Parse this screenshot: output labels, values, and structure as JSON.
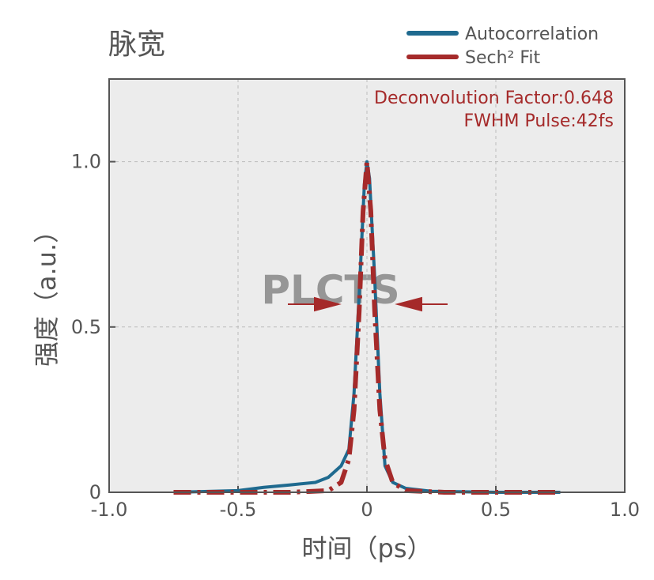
{
  "chart_data": {
    "type": "line",
    "title": "脉宽",
    "x_label": "时间（ps）",
    "y_label": "强度（a.u.）",
    "annotations": [
      "Deconvolution Factor:0.648",
      "FWHM Pulse:42fs"
    ],
    "watermark": "PLCTS",
    "xlim": [
      -1,
      1
    ],
    "ylim": [
      0,
      1.25
    ],
    "xticks": [
      {
        "value": -1,
        "label": "-1.0"
      },
      -0.5,
      0,
      0.5,
      {
        "value": 1,
        "label": "1.0"
      }
    ],
    "yticks": [
      0,
      0.5,
      {
        "value": 1,
        "label": "1.0"
      }
    ],
    "grid": true,
    "legend": "top-right",
    "series": [
      {
        "name": "Autocorrelation",
        "color": "#1f6a8f",
        "dash": false,
        "x": [
          -0.75,
          -0.5,
          -0.4,
          -0.3,
          -0.2,
          -0.15,
          -0.1,
          -0.07,
          -0.05,
          -0.03,
          -0.01,
          0,
          0.01,
          0.03,
          0.05,
          0.07,
          0.1,
          0.15,
          0.25,
          0.5,
          0.75
        ],
        "values": [
          0,
          0.005,
          0.015,
          0.022,
          0.03,
          0.045,
          0.08,
          0.13,
          0.3,
          0.6,
          0.93,
          1.0,
          0.95,
          0.65,
          0.3,
          0.08,
          0.03,
          0.012,
          0.003,
          0,
          0
        ]
      },
      {
        "name": "Sech² Fit",
        "color": "#a52a2a",
        "dash": true,
        "x": [
          -0.75,
          -0.3,
          -0.15,
          -0.1,
          -0.07,
          -0.05,
          -0.03,
          -0.015,
          0,
          0.015,
          0.03,
          0.05,
          0.07,
          0.1,
          0.15,
          0.3,
          0.75
        ],
        "values": [
          0,
          0,
          0.005,
          0.03,
          0.1,
          0.25,
          0.55,
          0.85,
          1.0,
          0.85,
          0.55,
          0.25,
          0.1,
          0.03,
          0.005,
          0,
          0
        ]
      }
    ]
  }
}
